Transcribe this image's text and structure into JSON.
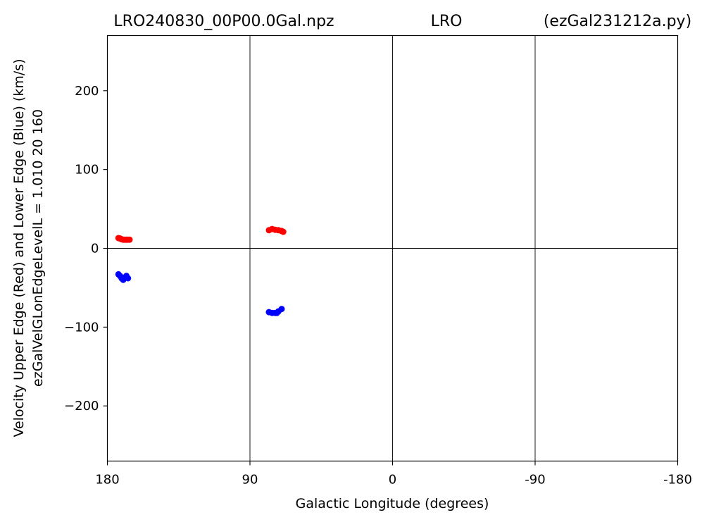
{
  "chart_data": {
    "type": "scatter",
    "title_left": "LRO240830_00P00.0Gal.npz",
    "title_center": "LRO",
    "title_right": "(ezGal231212a.py)",
    "xlabel": "Galactic Longitude (degrees)",
    "ylabel_line1": "Velocity Upper Edge (Red) and Lower Edge (Blue)  (km/s)",
    "ylabel_line2": "ezGalVelGLonEdgeLevelL = 1.010  20  160",
    "xlim": [
      180,
      -180
    ],
    "ylim": [
      -270,
      270
    ],
    "x_ticks": [
      180,
      90,
      0,
      -90,
      -180
    ],
    "x_tick_labels": [
      "180",
      "90",
      "0",
      "-90",
      "-180"
    ],
    "y_ticks": [
      200,
      100,
      0,
      -100,
      -200
    ],
    "y_tick_labels": [
      "200",
      "100",
      "0",
      "−100",
      "−200"
    ],
    "grid": true,
    "series": [
      {
        "color": "#ff0000",
        "points": [
          [
            173,
            13
          ],
          [
            172,
            12.5
          ],
          [
            171,
            11.5
          ],
          [
            170,
            11
          ],
          [
            169,
            11
          ],
          [
            168,
            11
          ],
          [
            167,
            11
          ],
          [
            166,
            11
          ],
          [
            78,
            23
          ],
          [
            76,
            24.5
          ],
          [
            74,
            23.5
          ],
          [
            72,
            23
          ],
          [
            70,
            22
          ],
          [
            69,
            21
          ]
        ]
      },
      {
        "color": "#0000ff",
        "points": [
          [
            173,
            -33
          ],
          [
            172,
            -35
          ],
          [
            171,
            -38
          ],
          [
            170,
            -40
          ],
          [
            169,
            -37
          ],
          [
            168,
            -35
          ],
          [
            167,
            -38
          ],
          [
            78,
            -81
          ],
          [
            76,
            -82
          ],
          [
            74,
            -82
          ],
          [
            73,
            -82
          ],
          [
            72,
            -80
          ],
          [
            70,
            -77
          ]
        ]
      }
    ]
  }
}
